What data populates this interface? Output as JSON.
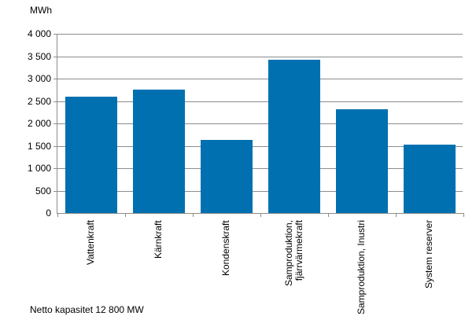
{
  "chart_data": {
    "type": "bar",
    "title": "",
    "ylabel": "MWh",
    "xlabel": "",
    "ylim": [
      0,
      4000
    ],
    "yticks": [
      0,
      500,
      1000,
      1500,
      2000,
      2500,
      3000,
      3500,
      4000
    ],
    "ytick_labels": [
      "0",
      "500",
      "1 000",
      "1 500",
      "2 000",
      "2 500",
      "3 000",
      "3 500",
      "4 000"
    ],
    "grid": true,
    "categories": [
      "Vattenkraft",
      "Kärnkraft",
      "Kondenskraft",
      "Samproduktion, fjärrvärmekraft",
      "Samproduktion, Inustri",
      "System reserver"
    ],
    "category_lines": [
      [
        "Vattenkraft"
      ],
      [
        "Kärnkraft"
      ],
      [
        "Kondenskraft"
      ],
      [
        "Samproduktion,",
        "fjärrvärmekraft"
      ],
      [
        "Samproduktion, Inustri"
      ],
      [
        "System reserver"
      ]
    ],
    "values": [
      2600,
      2760,
      1630,
      3420,
      2320,
      1530
    ],
    "bar_color": "#0070B0",
    "annotation": "Netto kapasitet 12 800 MW"
  }
}
